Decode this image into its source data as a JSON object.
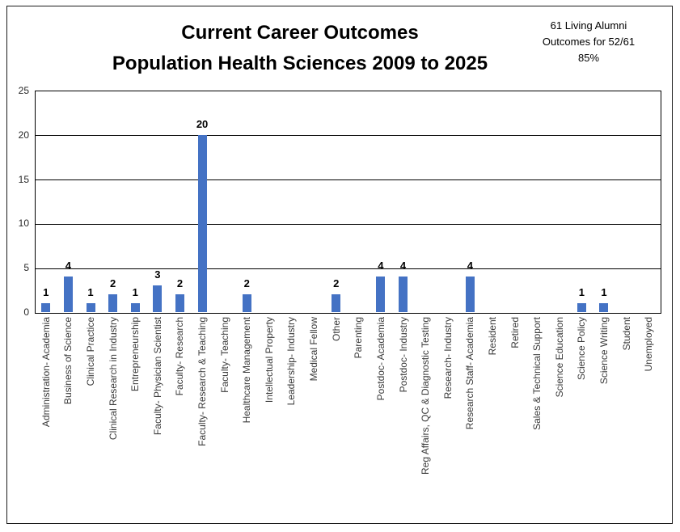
{
  "title": {
    "line1": "Current Career Outcomes",
    "line2": "Population Health Sciences 2009 to 2025"
  },
  "annotation": {
    "line1": "61 Living Alumni",
    "line2": "Outcomes for 52/61",
    "line3": "85%"
  },
  "colors": {
    "bar": "#4472C4",
    "grid": "#000000",
    "axis_text": "#3a3a3a",
    "title_text": "#000000"
  },
  "chart_data": {
    "type": "bar",
    "title": "Current Career Outcomes Population Health Sciences 2009 to 2025",
    "xlabel": "",
    "ylabel": "",
    "ylim": [
      0,
      25
    ],
    "yticks": [
      0,
      5,
      10,
      15,
      20,
      25
    ],
    "grid": "horizontal",
    "legend": "none",
    "data_labels": "shown above non-zero bars",
    "categories": [
      "Administration- Academia",
      "Business of Science",
      "Clinical Practice",
      "Clinical Research in Industry",
      "Entrepreneurship",
      "Faculty- Physician Scientist",
      "Faculty- Research",
      "Faculty- Research & Teaching",
      "Faculty- Teaching",
      "Healthcare Management",
      "Intellectual Property",
      "Leadership- Industry",
      "Medical Fellow",
      "Other",
      "Parenting",
      "Postdoc- Academia",
      "Postdoc- Industry",
      "Reg Affairs, QC & Diagnostic Testing",
      "Research- Industry",
      "Research Staff- Academia",
      "Resident",
      "Retired",
      "Sales & Technical Support",
      "Science Education",
      "Science Policy",
      "Science Writing",
      "Student",
      "Unemployed"
    ],
    "values": [
      1,
      4,
      1,
      2,
      1,
      3,
      2,
      20,
      0,
      2,
      0,
      0,
      0,
      2,
      0,
      4,
      4,
      0,
      0,
      4,
      0,
      0,
      0,
      0,
      1,
      1,
      0,
      0
    ]
  }
}
